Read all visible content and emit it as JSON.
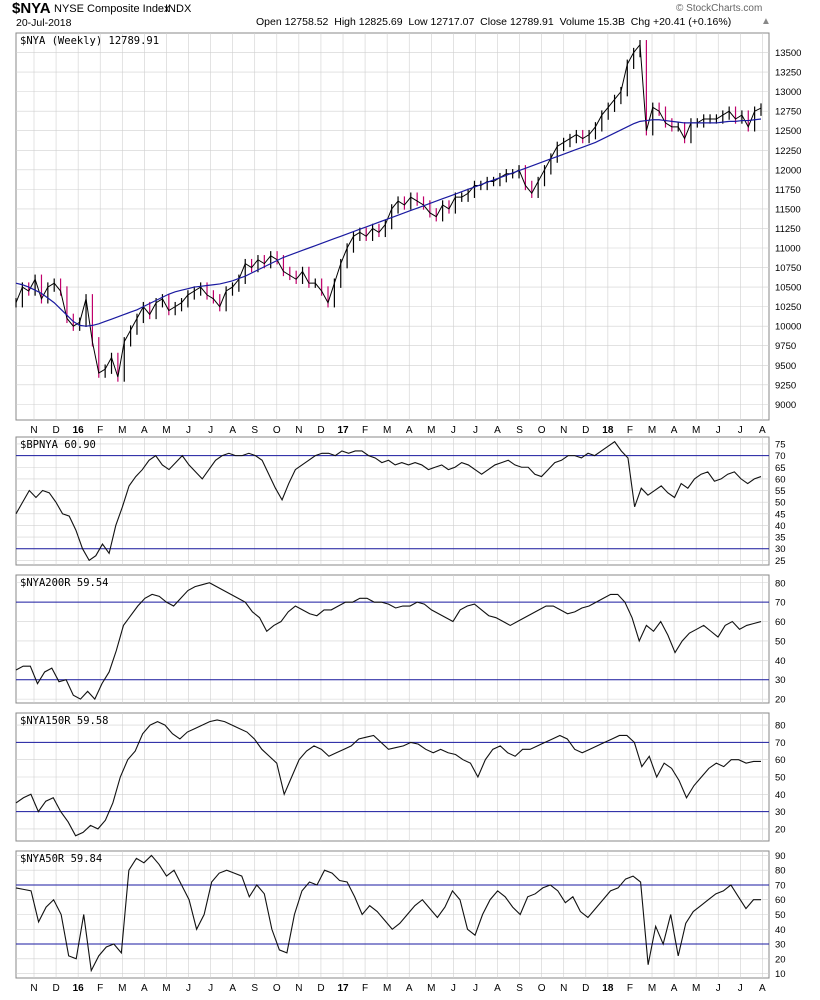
{
  "header": {
    "symbol": "$NYA",
    "name": "NYSE Composite Index",
    "exchange": "INDX",
    "date": "20-Jul-2018",
    "ohlc": "Open 12758.52  High 12825.69  Low 12717.07  Close 12789.91  Volume 15.3B  Chg +20.41 (+0.16%)",
    "watermark": "© StockCharts.com",
    "trend_arrow": "▲"
  },
  "colors": {
    "price": "#000000",
    "down_bar": "#c0006b",
    "moving_average": "#1a1aa0",
    "reference_line": "#1a1aa0",
    "grid": "#d0d0d0"
  },
  "x_axis_labels": [
    "N",
    "D",
    "16",
    "F",
    "M",
    "A",
    "M",
    "J",
    "J",
    "A",
    "S",
    "O",
    "N",
    "D",
    "17",
    "F",
    "M",
    "A",
    "M",
    "J",
    "J",
    "A",
    "S",
    "O",
    "N",
    "D",
    "18",
    "F",
    "M",
    "A",
    "M",
    "J",
    "J",
    "A"
  ],
  "chart_data": [
    {
      "type": "line",
      "label": "$NYA (Weekly) 12789.91",
      "ylim": [
        8800,
        13750
      ],
      "yticks": [
        9000,
        9250,
        9500,
        9750,
        10000,
        10250,
        10500,
        10750,
        11000,
        11250,
        11500,
        11750,
        12000,
        12250,
        12500,
        12750,
        13000,
        13250,
        13500
      ],
      "x_start": 0,
      "series": [
        {
          "values": [
            10300,
            10500,
            10450,
            10600,
            10350,
            10500,
            10550,
            10450,
            10100,
            10000,
            10050,
            10350,
            9800,
            9400,
            9450,
            9600,
            9350,
            9800,
            9950,
            10100,
            10250,
            10150,
            10300,
            10350,
            10200,
            10250,
            10300,
            10400,
            10450,
            10500,
            10400,
            10350,
            10250,
            10450,
            10500,
            10600,
            10800,
            10750,
            10850,
            10800,
            10900,
            10850,
            10700,
            10650,
            10600,
            10700,
            10550,
            10550,
            10450,
            10300,
            10550,
            10800,
            11000,
            11150,
            11200,
            11150,
            11250,
            11200,
            11300,
            11500,
            11600,
            11550,
            11650,
            11600,
            11550,
            11450,
            11400,
            11550,
            11500,
            11650,
            11650,
            11700,
            11800,
            11800,
            11850,
            11850,
            11900,
            11950,
            11950,
            12000,
            11800,
            11700,
            11850,
            12000,
            12150,
            12300,
            12350,
            12400,
            12450,
            12400,
            12450,
            12550,
            12700,
            12800,
            12900,
            13000,
            13350,
            13500,
            13600,
            12500,
            12800,
            12750,
            12600,
            12550,
            12550,
            12400,
            12600,
            12600,
            12650,
            12650,
            12650,
            12700,
            12750,
            12650,
            12700,
            12550,
            12750,
            12790
          ]
        },
        {
          "values": [
            10550,
            10530,
            10500,
            10460,
            10420,
            10360,
            10300,
            10220,
            10140,
            10060,
            10010,
            10000,
            10010,
            10030,
            10060,
            10090,
            10120,
            10150,
            10180,
            10210,
            10250,
            10290,
            10330,
            10370,
            10410,
            10440,
            10460,
            10480,
            10500,
            10510,
            10520,
            10530,
            10540,
            10560,
            10580,
            10610,
            10640,
            10680,
            10720,
            10760,
            10800,
            10840,
            10880,
            10910,
            10940,
            10970,
            11000,
            11030,
            11060,
            11090,
            11120,
            11150,
            11180,
            11210,
            11240,
            11270,
            11300,
            11330,
            11360,
            11390,
            11420,
            11450,
            11480,
            11510,
            11540,
            11570,
            11600,
            11630,
            11660,
            11690,
            11720,
            11750,
            11780,
            11810,
            11840,
            11870,
            11900,
            11930,
            11960,
            11990,
            12020,
            12050,
            12080,
            12110,
            12140,
            12170,
            12200,
            12230,
            12260,
            12290,
            12320,
            12350,
            12390,
            12430,
            12470,
            12510,
            12550,
            12590,
            12620,
            12630,
            12640,
            12640,
            12630,
            12620,
            12610,
            12600,
            12600,
            12600,
            12600,
            12600,
            12600,
            12610,
            12620,
            12620,
            12630,
            12630,
            12640,
            12650
          ]
        }
      ]
    },
    {
      "type": "line",
      "label": "$BPNYA 60.90",
      "ylim": [
        23,
        78
      ],
      "yticks": [
        25,
        30,
        35,
        40,
        45,
        50,
        55,
        60,
        65,
        70,
        75
      ],
      "ref_lines": [
        30,
        70
      ],
      "x_start": 0,
      "series": [
        {
          "values": [
            45,
            50,
            55,
            52,
            55,
            54,
            50,
            45,
            44,
            38,
            30,
            25,
            27,
            32,
            28,
            40,
            48,
            57,
            61,
            64,
            68,
            70,
            66,
            64,
            67,
            70,
            66,
            63,
            60,
            64,
            68,
            70,
            71,
            70,
            70,
            71,
            70,
            68,
            62,
            56,
            51,
            58,
            64,
            66,
            68,
            70,
            71,
            71,
            70,
            72,
            71,
            72,
            72,
            70,
            69,
            67,
            68,
            66,
            67,
            66,
            67,
            66,
            64,
            65,
            66,
            64,
            65,
            67,
            66,
            64,
            62,
            64,
            66,
            67,
            68,
            66,
            65,
            65,
            62,
            61,
            64,
            67,
            68,
            70,
            70,
            69,
            71,
            70,
            72,
            74,
            76,
            72,
            69,
            48,
            56,
            53,
            55,
            57,
            54,
            52,
            58,
            56,
            60,
            62,
            63,
            59,
            60,
            62,
            63,
            60,
            58,
            60,
            61
          ]
        }
      ]
    },
    {
      "type": "line",
      "label": "$NYA200R 59.54",
      "ylim": [
        18,
        84
      ],
      "yticks": [
        20,
        30,
        40,
        50,
        60,
        70,
        80
      ],
      "ref_lines": [
        30,
        70
      ],
      "x_start": 0,
      "series": [
        {
          "values": [
            35,
            37,
            37,
            28,
            34,
            36,
            29,
            30,
            22,
            20,
            24,
            20,
            28,
            34,
            45,
            58,
            63,
            68,
            72,
            74,
            73,
            70,
            68,
            72,
            76,
            78,
            79,
            80,
            78,
            76,
            74,
            72,
            70,
            65,
            62,
            55,
            58,
            60,
            65,
            68,
            66,
            64,
            63,
            66,
            66,
            68,
            70,
            70,
            72,
            72,
            70,
            70,
            69,
            67,
            68,
            68,
            70,
            69,
            66,
            64,
            62,
            60,
            66,
            68,
            69,
            66,
            63,
            62,
            60,
            58,
            60,
            62,
            64,
            66,
            68,
            68,
            66,
            64,
            65,
            67,
            68,
            70,
            72,
            74,
            74,
            70,
            62,
            50,
            58,
            55,
            60,
            53,
            44,
            50,
            54,
            56,
            58,
            55,
            52,
            58,
            60,
            56,
            58,
            59,
            60
          ]
        }
      ]
    },
    {
      "type": "line",
      "label": "$NYA150R 59.58",
      "ylim": [
        13,
        87
      ],
      "yticks": [
        20,
        30,
        40,
        50,
        60,
        70,
        80
      ],
      "ref_lines": [
        30,
        70
      ],
      "x_start": 0,
      "series": [
        {
          "values": [
            35,
            38,
            40,
            30,
            36,
            38,
            30,
            24,
            16,
            18,
            22,
            20,
            25,
            35,
            50,
            60,
            65,
            75,
            80,
            82,
            80,
            75,
            72,
            76,
            78,
            80,
            82,
            83,
            82,
            80,
            78,
            76,
            72,
            66,
            62,
            58,
            40,
            50,
            60,
            65,
            68,
            66,
            62,
            64,
            66,
            68,
            72,
            73,
            74,
            70,
            66,
            67,
            68,
            70,
            69,
            66,
            64,
            66,
            64,
            63,
            60,
            58,
            50,
            60,
            66,
            68,
            64,
            62,
            66,
            66,
            68,
            70,
            72,
            74,
            72,
            66,
            64,
            66,
            68,
            70,
            72,
            74,
            74,
            70,
            56,
            62,
            50,
            58,
            55,
            48,
            38,
            45,
            50,
            55,
            58,
            56,
            60,
            60,
            58,
            59,
            59
          ]
        }
      ]
    },
    {
      "type": "line",
      "label": "$NYA50R 59.84",
      "ylim": [
        7,
        93
      ],
      "yticks": [
        10,
        20,
        30,
        40,
        50,
        60,
        70,
        80,
        90
      ],
      "ref_lines": [
        30,
        70
      ],
      "x_start": 0,
      "series": [
        {
          "values": [
            68,
            67,
            66,
            45,
            55,
            60,
            50,
            22,
            20,
            50,
            12,
            22,
            28,
            30,
            24,
            80,
            88,
            85,
            90,
            84,
            76,
            80,
            70,
            60,
            40,
            50,
            72,
            78,
            80,
            78,
            76,
            62,
            70,
            64,
            40,
            26,
            24,
            50,
            66,
            72,
            70,
            80,
            78,
            73,
            72,
            62,
            50,
            56,
            52,
            46,
            40,
            44,
            50,
            56,
            60,
            54,
            48,
            55,
            66,
            60,
            40,
            36,
            50,
            60,
            66,
            62,
            55,
            50,
            62,
            64,
            68,
            70,
            66,
            58,
            62,
            52,
            48,
            54,
            60,
            66,
            68,
            74,
            76,
            72,
            16,
            42,
            30,
            50,
            22,
            44,
            52,
            56,
            60,
            64,
            66,
            70,
            62,
            54,
            60,
            60
          ]
        }
      ]
    }
  ]
}
